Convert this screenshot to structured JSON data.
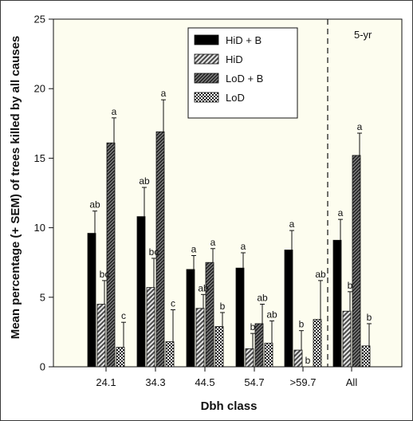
{
  "chart_data": {
    "type": "bar",
    "xlabel": "Dbh class",
    "ylabel": "Mean percentage (+ SEM) of trees killed by all causes",
    "ylim": [
      0,
      25
    ],
    "yticks": [
      "0",
      "5",
      "10",
      "15",
      "20",
      "25"
    ],
    "categories": [
      "24.1",
      "34.3",
      "44.5",
      "54.7",
      ">59.7",
      "All"
    ],
    "annotation": "5-yr",
    "legend_position": "top-right",
    "grid": false,
    "series": [
      {
        "name": "HiD + B",
        "pattern": "solid",
        "color": "#000000",
        "values": [
          9.6,
          10.8,
          7.0,
          7.1,
          8.4,
          9.1
        ],
        "errors": [
          1.6,
          2.1,
          1.0,
          1.1,
          1.4,
          1.5
        ],
        "letters": [
          "ab",
          "ab",
          "a",
          "a",
          "a",
          "a"
        ]
      },
      {
        "name": "HiD",
        "pattern": "diagonal",
        "color": "#555555",
        "values": [
          4.5,
          5.7,
          4.2,
          1.3,
          1.2,
          4.0
        ],
        "errors": [
          1.7,
          2.1,
          1.0,
          1.1,
          1.4,
          1.4
        ],
        "letters": [
          "bc",
          "bc",
          "ab",
          "b",
          "b",
          "b"
        ]
      },
      {
        "name": "LoD + B",
        "pattern": "dense-diagonal",
        "color": "#333333",
        "values": [
          16.1,
          16.9,
          7.5,
          3.1,
          0.0,
          15.2
        ],
        "errors": [
          1.8,
          2.3,
          1.0,
          1.4,
          0.0,
          1.6
        ],
        "letters": [
          "a",
          "a",
          "a",
          "ab",
          "b",
          "a"
        ]
      },
      {
        "name": "LoD",
        "pattern": "checker",
        "color": "#444444",
        "values": [
          1.4,
          1.8,
          2.9,
          1.7,
          3.4,
          1.5
        ],
        "errors": [
          1.8,
          2.3,
          1.0,
          1.6,
          2.8,
          1.6
        ],
        "letters": [
          "c",
          "c",
          "b",
          "ab",
          "ab",
          "b"
        ]
      }
    ]
  }
}
